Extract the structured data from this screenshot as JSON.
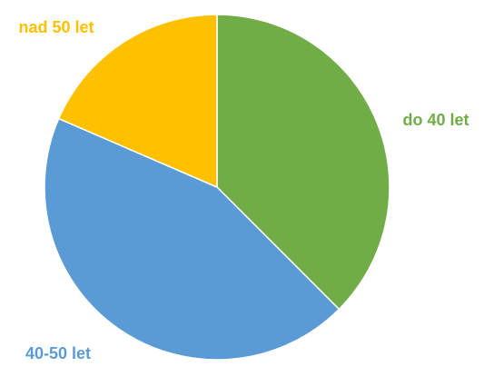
{
  "chart_data": {
    "type": "pie",
    "slices": [
      {
        "label": "do 40 let",
        "value": 37.5,
        "color": "#70AD47"
      },
      {
        "label": "40-50 let",
        "value": 44.0,
        "color": "#5B9BD5"
      },
      {
        "label": "nad 50 let",
        "value": 18.5,
        "color": "#FFC000"
      }
    ],
    "title": "",
    "legend": "none"
  }
}
